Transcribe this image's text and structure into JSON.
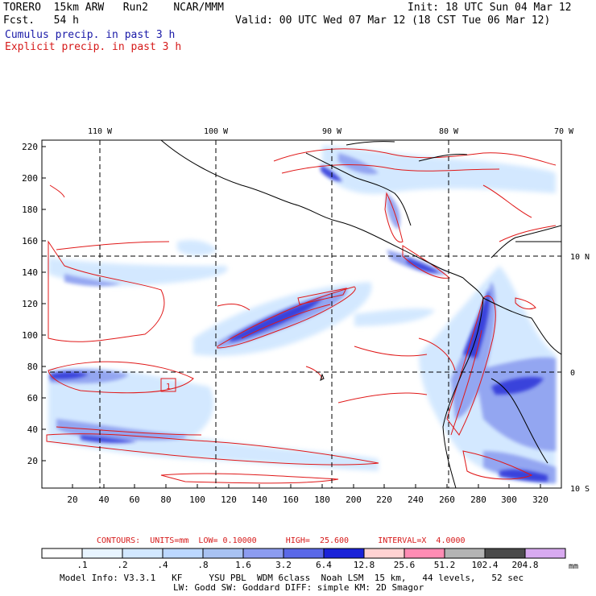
{
  "header": {
    "title": "TORERO  15km ARW   Run2    NCAR/MMM",
    "init": "Init: 18 UTC Sun 04 Mar 12",
    "fcst": "Fcst.   54 h",
    "valid": "Valid: 00 UTC Wed 07 Mar 12 (18 CST Tue 06 Mar 12)",
    "cumulus": "Cumulus precip. in past 3 h",
    "explicit": "Explicit precip. in past 3 h"
  },
  "map": {
    "lon_labels": [
      "110 W",
      "100 W",
      "90 W",
      "80 W",
      "70 W"
    ],
    "lat_labels": [
      "10 N",
      "0",
      "10 S"
    ],
    "y_ticks": [
      "220",
      "200",
      "180",
      "160",
      "140",
      "120",
      "100",
      "80",
      "60",
      "40",
      "20"
    ],
    "x_ticks": [
      "20",
      "40",
      "60",
      "80",
      "100",
      "120",
      "140",
      "160",
      "180",
      "200",
      "220",
      "240",
      "260",
      "280",
      "300",
      "320"
    ],
    "box_label": "1"
  },
  "contours_line": "CONTOURS:  UNITS=mm  LOW= 0.10000      HIGH=  25.600      INTERVAL=X  4.0000",
  "colorbar": {
    "labels": [
      ".1",
      ".2",
      ".4",
      ".8",
      "1.6",
      "3.2",
      "6.4",
      "12.8",
      "25.6",
      "51.2",
      "102.4",
      "204.8"
    ],
    "unit": "mm",
    "colors": [
      "#ffffff",
      "#e8f4ff",
      "#d2e8ff",
      "#bcd8ff",
      "#a8c2f2",
      "#8c9cf0",
      "#5a68e8",
      "#1a22d8",
      "#ffd2d2",
      "#ff8cb4",
      "#b4b4b4",
      "#4a4a4a",
      "#d8aaf0"
    ]
  },
  "model_info": {
    "line1": "Model Info: V3.3.1   KF     YSU PBL  WDM 6class  Noah LSM  15 km,   44 levels,   52 sec",
    "line2": "LW: Godd SW: Goddard DIFF: simple KM: 2D Smagor"
  }
}
